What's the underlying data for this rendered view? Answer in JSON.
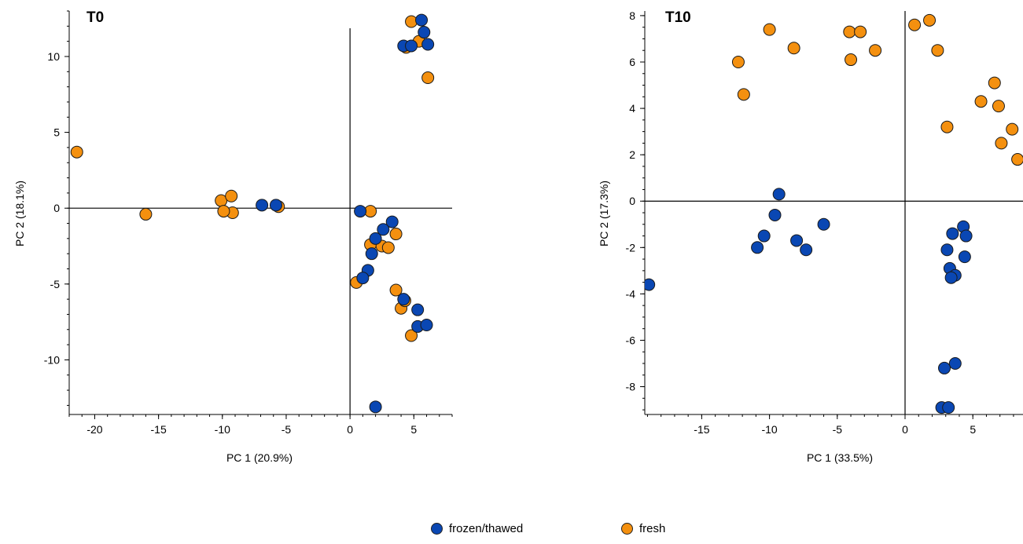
{
  "colors": {
    "frozen": "#0a47b3",
    "fresh": "#f4900f"
  },
  "legend": [
    {
      "label": "frozen/thawed",
      "color": "#0a47b3"
    },
    {
      "label": "fresh",
      "color": "#f4900f"
    }
  ],
  "chart_data": [
    {
      "type": "scatter",
      "title": "T0",
      "xlabel": "PC 1 (20.9%)",
      "ylabel": "PC 2 (18.1%)",
      "xticks": [
        -20,
        -15,
        -10,
        -5,
        0,
        5
      ],
      "yticks": [
        -10,
        -5,
        0,
        5,
        10
      ],
      "xlim": [
        -22,
        8
      ],
      "ylim": [
        -13.6,
        13.0
      ],
      "grid": false,
      "series": [
        {
          "name": "fresh",
          "color": "#f4900f",
          "points": [
            [
              -21.4,
              3.7
            ],
            [
              -16.0,
              -0.4
            ],
            [
              -10.1,
              0.5
            ],
            [
              -9.3,
              0.8
            ],
            [
              -9.2,
              -0.3
            ],
            [
              -9.9,
              -0.2
            ],
            [
              -5.6,
              0.1
            ],
            [
              1.6,
              -0.2
            ],
            [
              1.6,
              -2.4
            ],
            [
              2.5,
              -2.5
            ],
            [
              3.0,
              -2.6
            ],
            [
              3.6,
              -1.7
            ],
            [
              0.5,
              -4.9
            ],
            [
              3.6,
              -5.4
            ],
            [
              4.0,
              -6.6
            ],
            [
              4.3,
              -6.1
            ],
            [
              4.8,
              -8.4
            ],
            [
              4.8,
              12.3
            ],
            [
              4.4,
              10.6
            ],
            [
              5.4,
              11.0
            ],
            [
              6.1,
              8.6
            ]
          ]
        },
        {
          "name": "frozen/thawed",
          "color": "#0a47b3",
          "points": [
            [
              -6.9,
              0.2
            ],
            [
              -5.8,
              0.2
            ],
            [
              0.8,
              -0.2
            ],
            [
              2.0,
              -2.0
            ],
            [
              2.6,
              -1.4
            ],
            [
              3.3,
              -0.9
            ],
            [
              1.7,
              -3.0
            ],
            [
              1.4,
              -4.1
            ],
            [
              1.0,
              -4.6
            ],
            [
              4.2,
              -6.0
            ],
            [
              5.3,
              -6.7
            ],
            [
              5.3,
              -7.8
            ],
            [
              6.0,
              -7.7
            ],
            [
              2.0,
              -13.1
            ],
            [
              4.2,
              10.7
            ],
            [
              4.8,
              10.7
            ],
            [
              5.6,
              12.4
            ],
            [
              5.8,
              11.6
            ],
            [
              6.1,
              10.8
            ]
          ]
        }
      ]
    },
    {
      "type": "scatter",
      "title": "T10",
      "xlabel": "PC 1 (33.5%)",
      "ylabel": "PC 2 (17.3%)",
      "xticks": [
        -15,
        -10,
        -5,
        0,
        5
      ],
      "yticks": [
        -8,
        -6,
        -4,
        -2,
        0,
        2,
        4,
        6,
        8
      ],
      "xlim": [
        -19.2,
        8.7
      ],
      "ylim": [
        -9.2,
        8.2
      ],
      "grid": false,
      "series": [
        {
          "name": "fresh",
          "color": "#f4900f",
          "points": [
            [
              -12.3,
              6.0
            ],
            [
              -11.9,
              4.6
            ],
            [
              -10.0,
              7.4
            ],
            [
              -8.2,
              6.6
            ],
            [
              -4.1,
              7.3
            ],
            [
              -3.3,
              7.3
            ],
            [
              -4.0,
              6.1
            ],
            [
              -2.2,
              6.5
            ],
            [
              0.7,
              7.6
            ],
            [
              1.8,
              7.8
            ],
            [
              2.4,
              6.5
            ],
            [
              3.1,
              3.2
            ],
            [
              5.6,
              4.3
            ],
            [
              6.6,
              5.1
            ],
            [
              6.9,
              4.1
            ],
            [
              7.1,
              2.5
            ],
            [
              7.9,
              3.1
            ],
            [
              8.3,
              1.8
            ]
          ]
        },
        {
          "name": "frozen/thawed",
          "color": "#0a47b3",
          "points": [
            [
              -18.9,
              -3.6
            ],
            [
              -9.3,
              0.3
            ],
            [
              -9.6,
              -0.6
            ],
            [
              -10.4,
              -1.5
            ],
            [
              -10.9,
              -2.0
            ],
            [
              -8.0,
              -1.7
            ],
            [
              -7.3,
              -2.1
            ],
            [
              -6.0,
              -1.0
            ],
            [
              4.3,
              -1.1
            ],
            [
              4.5,
              -1.5
            ],
            [
              3.5,
              -1.4
            ],
            [
              3.1,
              -2.1
            ],
            [
              4.4,
              -2.4
            ],
            [
              3.3,
              -2.9
            ],
            [
              3.7,
              -3.2
            ],
            [
              3.4,
              -3.3
            ],
            [
              3.7,
              -7.0
            ],
            [
              2.9,
              -7.2
            ],
            [
              2.7,
              -8.9
            ],
            [
              3.2,
              -8.9
            ]
          ]
        }
      ]
    }
  ]
}
